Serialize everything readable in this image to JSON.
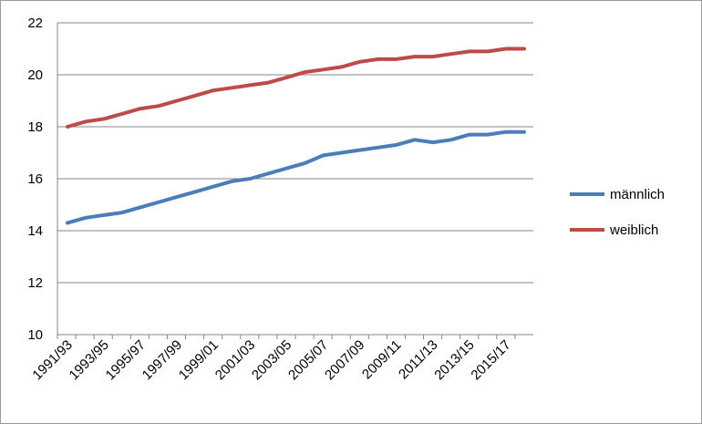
{
  "chart_data": {
    "type": "line",
    "title": "",
    "xlabel": "",
    "ylabel": "",
    "ylim": [
      10,
      22
    ],
    "yticks": [
      10,
      12,
      14,
      16,
      18,
      20,
      22
    ],
    "grid": "horizontal",
    "legend_position": "right",
    "x": [
      "1991/93",
      "1992/94",
      "1993/95",
      "1994/96",
      "1995/97",
      "1996/98",
      "1997/99",
      "1998/00",
      "1999/01",
      "2000/02",
      "2001/03",
      "2002/04",
      "2003/05",
      "2004/06",
      "2005/07",
      "2006/08",
      "2007/09",
      "2008/10",
      "2009/11",
      "2010/12",
      "2011/13",
      "2012/14",
      "2013/15",
      "2014/16",
      "2015/17",
      "2016/18"
    ],
    "x_tick_labels": [
      "1991/93",
      "1993/95",
      "1995/97",
      "1997/99",
      "1999/01",
      "2001/03",
      "2003/05",
      "2005/07",
      "2007/09",
      "2009/11",
      "2011/13",
      "2013/15",
      "2015/17"
    ],
    "series": [
      {
        "name": "männlich",
        "color": "#4a7ebb",
        "values": [
          14.3,
          14.5,
          14.6,
          14.7,
          14.9,
          15.1,
          15.3,
          15.5,
          15.7,
          15.9,
          16.0,
          16.2,
          16.4,
          16.6,
          16.9,
          17.0,
          17.1,
          17.2,
          17.3,
          17.5,
          17.4,
          17.5,
          17.7,
          17.7,
          17.8,
          17.8
        ]
      },
      {
        "name": "weiblich",
        "color": "#be4b48",
        "values": [
          18.0,
          18.2,
          18.3,
          18.5,
          18.7,
          18.8,
          19.0,
          19.2,
          19.4,
          19.5,
          19.6,
          19.7,
          19.9,
          20.1,
          20.2,
          20.3,
          20.5,
          20.6,
          20.6,
          20.7,
          20.7,
          20.8,
          20.9,
          20.9,
          21.0,
          21.0
        ]
      }
    ]
  }
}
